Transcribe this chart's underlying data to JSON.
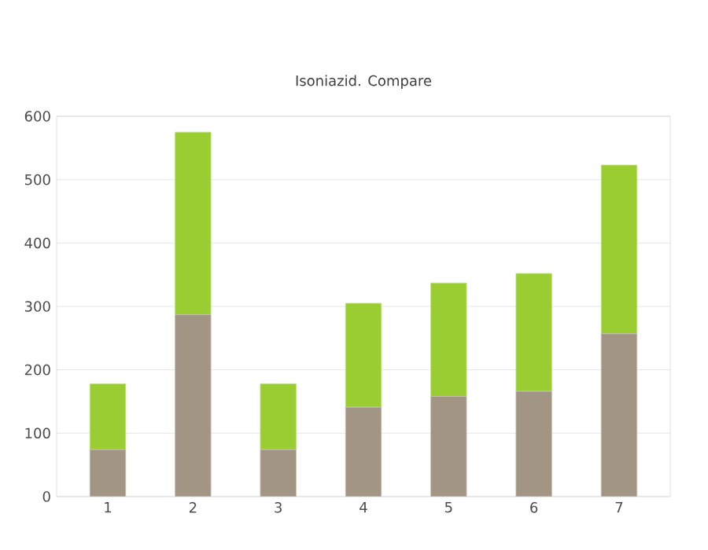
{
  "chart_data": {
    "type": "bar",
    "title": "Isoniazid. Compare",
    "stacked": true,
    "grid": "y",
    "categories": [
      "1",
      "2",
      "3",
      "4",
      "5",
      "6",
      "7"
    ],
    "series": [
      {
        "color": "#a39584",
        "values": [
          74,
          287,
          74,
          141,
          158,
          166,
          257
        ]
      },
      {
        "color": "#9acd32",
        "values": [
          104,
          288,
          104,
          164,
          179,
          186,
          266
        ]
      }
    ],
    "ylim": [
      0,
      600
    ],
    "yticks": [
      0,
      100,
      200,
      300,
      400,
      500,
      600
    ]
  }
}
